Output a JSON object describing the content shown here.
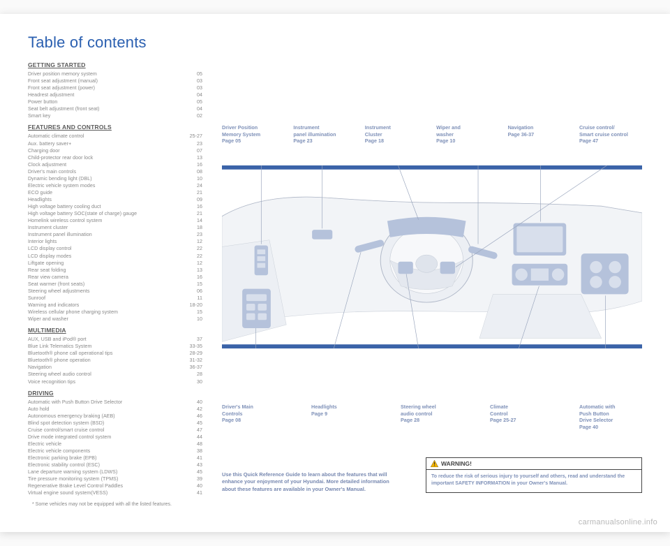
{
  "title": "Table of contents",
  "sections": [
    {
      "heading": "GETTING STARTED",
      "items": [
        {
          "label": "Driver position memory system",
          "pg": "05"
        },
        {
          "label": "Front seat adjustment (manual)",
          "pg": "03"
        },
        {
          "label": "Front seat adjustment (power)",
          "pg": "03"
        },
        {
          "label": "Headrest adjustment",
          "pg": "04"
        },
        {
          "label": "Power button",
          "pg": "05"
        },
        {
          "label": "Seat belt adjustment (front seat)",
          "pg": "04"
        },
        {
          "label": "Smart key",
          "pg": "02"
        }
      ]
    },
    {
      "heading": "FEATURES AND CONTROLS",
      "items": [
        {
          "label": "Automatic climate control",
          "pg": "25-27"
        },
        {
          "label": "Aux. battery saver+",
          "pg": "23"
        },
        {
          "label": "Charging door",
          "pg": "07"
        },
        {
          "label": "Child-protector rear door lock",
          "pg": "13"
        },
        {
          "label": "Clock adjustment",
          "pg": "16"
        },
        {
          "label": "Driver's main controls",
          "pg": "08"
        },
        {
          "label": "Dynamic bending light (DBL)",
          "pg": "10"
        },
        {
          "label": "Electric vehicle system modes",
          "pg": "24"
        },
        {
          "label": "ECO guide",
          "pg": "21"
        },
        {
          "label": "Headlights",
          "pg": "09"
        },
        {
          "label": "High voltage battery cooling duct",
          "pg": "16"
        },
        {
          "label": "High voltage battery SOC(state of charge) gauge",
          "pg": "21"
        },
        {
          "label": "Homelink wireless control system",
          "pg": "14"
        },
        {
          "label": "Instrument cluster",
          "pg": "18"
        },
        {
          "label": "Instrument panel illumination",
          "pg": "23"
        },
        {
          "label": "Interior lights",
          "pg": "12"
        },
        {
          "label": "LCD display control",
          "pg": "22"
        },
        {
          "label": "LCD display modes",
          "pg": "22"
        },
        {
          "label": "Liftgate opening",
          "pg": "12"
        },
        {
          "label": "Rear seat folding",
          "pg": "13"
        },
        {
          "label": "Rear view camera",
          "pg": "16"
        },
        {
          "label": "Seat warmer (front seats)",
          "pg": "15"
        },
        {
          "label": "Steering wheel adjustments",
          "pg": "06"
        },
        {
          "label": "Sunroof",
          "pg": "11"
        },
        {
          "label": "Warning and indicators",
          "pg": "18-20"
        },
        {
          "label": "Wireless cellular phone charging system",
          "pg": "15"
        },
        {
          "label": "Wiper and washer",
          "pg": "10"
        }
      ]
    },
    {
      "heading": "MULTIMEDIA",
      "items": [
        {
          "label": "AUX, USB and iPod® port",
          "pg": "37"
        },
        {
          "label": "Blue Link Telematics System",
          "pg": "33-35"
        },
        {
          "label": "Bluetooth® phone call operational tips",
          "pg": "28-29"
        },
        {
          "label": "Bluetooth® phone operation",
          "pg": "31-32"
        },
        {
          "label": "Navigation",
          "pg": "36-37"
        },
        {
          "label": "Steering wheel audio control",
          "pg": "28"
        },
        {
          "label": "Voice recognition tips",
          "pg": "30"
        }
      ]
    },
    {
      "heading": "DRIVING",
      "items": [
        {
          "label": "Automatic with Push Button Drive Selector",
          "pg": "40"
        },
        {
          "label": "Auto hold",
          "pg": "42"
        },
        {
          "label": "Autonomous emergency braking (AEB)",
          "pg": "46"
        },
        {
          "label": "Blind spot detection system (BSD)",
          "pg": "45"
        },
        {
          "label": "Cruise control/smart cruise control",
          "pg": "47"
        },
        {
          "label": "Drive mode integrated control system",
          "pg": "44"
        },
        {
          "label": "Electric vehicle",
          "pg": "48"
        },
        {
          "label": "Electric vehicle components",
          "pg": "38"
        },
        {
          "label": "Electronic parking brake (EPB)",
          "pg": "41"
        },
        {
          "label": "Electronic stability control (ESC)",
          "pg": "43"
        },
        {
          "label": "Lane departure warning system (LDWS)",
          "pg": "45"
        },
        {
          "label": "Tire pressure monitoring system (TPMS)",
          "pg": "39"
        },
        {
          "label": "Regenerative Brake Level Control Paddles",
          "pg": "40"
        },
        {
          "label": "Virtual engine sound system(VESS)",
          "pg": "41"
        }
      ]
    }
  ],
  "footnote": "* Some vehicles may not be equipped with all the listed features.",
  "callouts_top": [
    {
      "t1": "Driver Position",
      "t2": "Memory System",
      "pg": "Page 05"
    },
    {
      "t1": "Instrument",
      "t2": "panel illumination",
      "pg": "Page 23"
    },
    {
      "t1": "Instrument",
      "t2": "Cluster",
      "pg": "Page 18"
    },
    {
      "t1": "Wiper and",
      "t2": "washer",
      "pg": "Page 10"
    },
    {
      "t1": "Navigation",
      "t2": "Page 36-37",
      "pg": ""
    },
    {
      "t1": "Cruise control/",
      "t2": "Smart cruise control",
      "pg": "Page 47"
    }
  ],
  "callouts_bottom": [
    {
      "t1": "Driver's Main",
      "t2": "Controls",
      "pg": "Page 08"
    },
    {
      "t1": "Headlights",
      "t2": "Page 9",
      "pg": ""
    },
    {
      "t1": "Steering wheel",
      "t2": "audio control",
      "pg": "Page 28"
    },
    {
      "t1": "Climate",
      "t2": "Control",
      "pg": "Page 25-27"
    },
    {
      "t1": "Automatic with",
      "t2": "Push Button",
      "t3": "Drive Selector",
      "pg": "Page 40"
    }
  ],
  "bottom_text": "Use this Quick Reference Guide to learn about the features that will enhance your enjoyment of your Hyundai. More detailed information about these features are available in your Owner's Manual.",
  "warning": {
    "head": "WARNING!",
    "body": "To reduce the risk of serious injury to yourself and others, read and understand the important SAFETY INFORMATION in your Owner's Manual."
  },
  "watermark": "carmanualsonline.info",
  "colors": {
    "accent": "#2a5fb0",
    "muted": "#888888",
    "callout": "#7f91b8",
    "band": "#3a63a8",
    "highlight": "#b5c2db",
    "dashline": "#b0b8c8"
  }
}
